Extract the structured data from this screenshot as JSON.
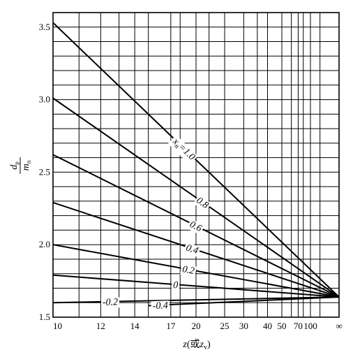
{
  "chart_data": {
    "type": "line",
    "title": "",
    "xlabel": "z (或zv)",
    "xlabel_parts": {
      "italic": "z",
      "paren_open": "(或",
      "sub_var": "z",
      "sub": "v",
      "paren_close": ")"
    },
    "ylabel": "dp/mn",
    "ylabel_parts": {
      "num": "d",
      "num_sub": "p",
      "den": "m",
      "den_sub": "n"
    },
    "x_scale": "reciprocal",
    "x_tick_labels": [
      "10",
      "12",
      "14",
      "17",
      "20",
      "25",
      "30",
      "40",
      "50",
      "70",
      "100",
      "∞"
    ],
    "x_ticks": [
      10,
      12,
      14,
      17,
      20,
      25,
      30,
      40,
      50,
      70,
      100,
      "inf"
    ],
    "x_grid": [
      10,
      11,
      12,
      13,
      14,
      15,
      17,
      18,
      20,
      22,
      25,
      30,
      35,
      40,
      50,
      60,
      70,
      80,
      100,
      150,
      "inf"
    ],
    "ylim": [
      1.5,
      3.6
    ],
    "y_ticks": [
      1.5,
      2.0,
      2.5,
      3.0,
      3.5
    ],
    "y_tick_labels": [
      "1.5",
      "2.0",
      "2.5",
      "3.0",
      "3.5"
    ],
    "y_grid_step": 0.1,
    "grid": true,
    "convergence_point": 1.639,
    "series": [
      {
        "name": "xn=1.0",
        "label_parts": [
          "x",
          "n",
          "=1.0"
        ],
        "y_at_10": 3.53,
        "x_min": 10,
        "label_at": 18.5
      },
      {
        "name": "0.8",
        "label_parts": [
          "0.8"
        ],
        "y_at_10": 3.01,
        "x_min": 10,
        "label_at": 21
      },
      {
        "name": "0.6",
        "label_parts": [
          "0.6"
        ],
        "y_at_10": 2.62,
        "x_min": 10,
        "label_at": 20
      },
      {
        "name": "0.4",
        "label_parts": [
          "0.4"
        ],
        "y_at_10": 2.29,
        "x_min": 10,
        "label_at": 19.5
      },
      {
        "name": "0.2",
        "label_parts": [
          "0.2"
        ],
        "y_at_10": 2.0,
        "x_min": 10,
        "label_at": 19
      },
      {
        "name": "0",
        "label_parts": [
          "0"
        ],
        "y_at_10": 1.79,
        "x_min": 10,
        "label_at": 17.5
      },
      {
        "name": "-0.2",
        "label_parts": [
          "-0.2"
        ],
        "y_at_10": 1.6,
        "x_min": 10,
        "label_at": 12.5
      },
      {
        "name": "-0.4",
        "label_parts": [
          "-0.4"
        ],
        "y_at_10": 1.55,
        "x_min": 15,
        "label_at": 16
      }
    ]
  }
}
